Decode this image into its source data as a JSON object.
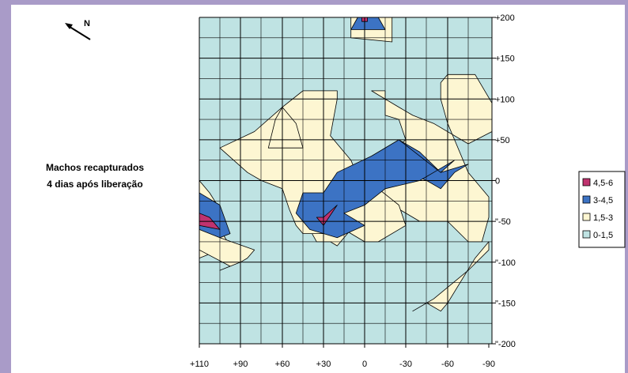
{
  "chart_data": {
    "type": "heatmap",
    "title": "Machos recapturados 4 dias após liberação",
    "title_lines": [
      "Machos recapturados",
      "4 dias após liberação"
    ],
    "compass": "N",
    "x_ticks": [
      "+110",
      "+90",
      "+60",
      "+30",
      "0",
      "-30",
      "-60",
      "-90"
    ],
    "y_ticks": [
      "+200",
      "+150",
      "+100",
      "+50",
      "0",
      "\"-50",
      "\"-100",
      "\"-150",
      "\"-200"
    ],
    "xlim": [
      110,
      -90
    ],
    "ylim": [
      -200,
      200
    ],
    "grid": true,
    "legend_position": "right",
    "legend": [
      {
        "label": "4,5-6",
        "color": "#c0336f"
      },
      {
        "label": "3-4,5",
        "color": "#3c73c4"
      },
      {
        "label": "1,5-3",
        "color": "#fdf6d2"
      },
      {
        "label": "0-1,5",
        "color": "#bfe3e3"
      }
    ],
    "contours": [
      {
        "level": "1,5-3",
        "color": "#fdf6d2",
        "points": [
          [
            -5,
            110
          ],
          [
            -15,
            110
          ],
          [
            -15,
            80
          ],
          [
            -25,
            75
          ],
          [
            -30,
            50
          ],
          [
            -15,
            30
          ],
          [
            -5,
            -10
          ],
          [
            -15,
            -25
          ],
          [
            -25,
            -35
          ],
          [
            -40,
            -50
          ],
          [
            -60,
            -50
          ],
          [
            -75,
            -75
          ],
          [
            -85,
            -75
          ],
          [
            -90,
            -45
          ],
          [
            -90,
            -20
          ],
          [
            -75,
            10
          ],
          [
            -65,
            50
          ],
          [
            -60,
            70
          ],
          [
            -55,
            100
          ],
          [
            -55,
            120
          ],
          [
            -60,
            130
          ],
          [
            -80,
            130
          ],
          [
            -95,
            95
          ],
          [
            -95,
            60
          ],
          [
            -75,
            45
          ],
          [
            -50,
            70
          ],
          [
            -35,
            80
          ],
          [
            -25,
            90
          ],
          [
            -10,
            105
          ]
        ]
      },
      {
        "level": "1,5-3",
        "color": "#fdf6d2",
        "points": [
          [
            35,
            -10
          ],
          [
            10,
            -10
          ],
          [
            -5,
            -30
          ],
          [
            15,
            -40
          ],
          [
            10,
            -60
          ],
          [
            20,
            -80
          ],
          [
            25,
            -75
          ],
          [
            35,
            -75
          ],
          [
            40,
            -60
          ],
          [
            45,
            -50
          ],
          [
            50,
            -20
          ]
        ]
      },
      {
        "level": "1,5-3",
        "color": "#fdf6d2",
        "points": [
          [
            30,
            -65
          ],
          [
            45,
            -65
          ],
          [
            50,
            -55
          ],
          [
            55,
            -35
          ],
          [
            60,
            -10
          ],
          [
            75,
            0
          ],
          [
            85,
            10
          ],
          [
            100,
            40
          ],
          [
            80,
            60
          ],
          [
            60,
            90
          ],
          [
            45,
            110
          ],
          [
            20,
            110
          ],
          [
            20,
            100
          ],
          [
            25,
            55
          ],
          [
            10,
            25
          ],
          [
            5,
            5
          ],
          [
            -10,
            -10
          ],
          [
            -25,
            -30
          ],
          [
            -30,
            -55
          ],
          [
            -10,
            -75
          ],
          [
            0,
            -75
          ],
          [
            15,
            -60
          ]
        ]
      },
      {
        "level": "1,5-3",
        "color": "#fdf6d2",
        "points": [
          [
            65,
            75
          ],
          [
            70,
            40
          ],
          [
            45,
            40
          ],
          [
            50,
            70
          ],
          [
            60,
            90
          ]
        ]
      },
      {
        "level": "1,5-3",
        "color": "#fdf6d2",
        "points": [
          [
            125,
            -5
          ],
          [
            140,
            0
          ],
          [
            105,
            -15
          ],
          [
            100,
            -35
          ],
          [
            100,
            -60
          ],
          [
            95,
            -80
          ],
          [
            110,
            -95
          ],
          [
            120,
            -90
          ],
          [
            130,
            -70
          ],
          [
            135,
            -30
          ]
        ]
      },
      {
        "level": "1,5-3",
        "color": "#fdf6d2",
        "points": [
          [
            110,
            -25
          ],
          [
            110,
            -85
          ],
          [
            95,
            -105
          ],
          [
            100,
            -110
          ],
          [
            90,
            -100
          ],
          [
            85,
            -95
          ],
          [
            80,
            -85
          ],
          [
            100,
            -70
          ],
          [
            100,
            -40
          ]
        ]
      },
      {
        "level": "1,5-3",
        "color": "#fdf6d2",
        "points": [
          [
            10,
            200
          ],
          [
            -20,
            200
          ],
          [
            -20,
            170
          ],
          [
            10,
            175
          ],
          [
            10,
            200
          ]
        ]
      },
      {
        "level": "1,5-3",
        "color": "#fdf6d2",
        "points": [
          [
            -90,
            -75
          ],
          [
            -80,
            -95
          ],
          [
            -60,
            -150
          ],
          [
            -55,
            -160
          ],
          [
            -45,
            -150
          ],
          [
            -35,
            -160
          ],
          [
            -50,
            -145
          ],
          [
            -75,
            -110
          ],
          [
            -90,
            -85
          ]
        ]
      },
      {
        "level": "3-4,5",
        "color": "#3c73c4",
        "points": [
          [
            -25,
            50
          ],
          [
            -10,
            30
          ],
          [
            -15,
            20
          ],
          [
            -45,
            0
          ],
          [
            -55,
            -10
          ],
          [
            -65,
            10
          ],
          [
            -75,
            20
          ],
          [
            -55,
            10
          ],
          [
            -40,
            35
          ]
        ]
      },
      {
        "level": "3-4,5",
        "color": "#3c73c4",
        "points": [
          [
            -25,
            50
          ],
          [
            -5,
            30
          ],
          [
            20,
            10
          ],
          [
            30,
            -15
          ],
          [
            45,
            -15
          ],
          [
            50,
            -40
          ],
          [
            40,
            -60
          ],
          [
            20,
            -70
          ],
          [
            0,
            -55
          ],
          [
            15,
            -40
          ],
          [
            0,
            -30
          ],
          [
            -15,
            -10
          ],
          [
            -40,
            0
          ],
          [
            -50,
            10
          ],
          [
            -60,
            20
          ],
          [
            -65,
            25
          ],
          [
            -55,
            10
          ]
        ]
      },
      {
        "level": "3-4,5",
        "color": "#3c73c4",
        "points": [
          [
            110,
            -15
          ],
          [
            100,
            -30
          ],
          [
            95,
            -65
          ],
          [
            100,
            -70
          ],
          [
            110,
            -60
          ]
        ]
      },
      {
        "level": "3-4,5",
        "color": "#3c73c4",
        "points": [
          [
            5,
            200
          ],
          [
            -10,
            200
          ],
          [
            -15,
            185
          ],
          [
            10,
            185
          ]
        ]
      },
      {
        "level": "4,5-6",
        "color": "#c0336f",
        "points": [
          [
            110,
            -40
          ],
          [
            105,
            -45
          ],
          [
            100,
            -60
          ],
          [
            110,
            -55
          ]
        ]
      },
      {
        "level": "4,5-6",
        "color": "#c0336f",
        "points": [
          [
            35,
            -45
          ],
          [
            30,
            -45
          ],
          [
            20,
            -30
          ],
          [
            30,
            -55
          ]
        ]
      },
      {
        "level": "4,5-6",
        "color": "#c0336f",
        "points": [
          [
            2,
            200
          ],
          [
            -2,
            200
          ],
          [
            -2,
            195
          ],
          [
            2,
            195
          ]
        ]
      }
    ]
  }
}
